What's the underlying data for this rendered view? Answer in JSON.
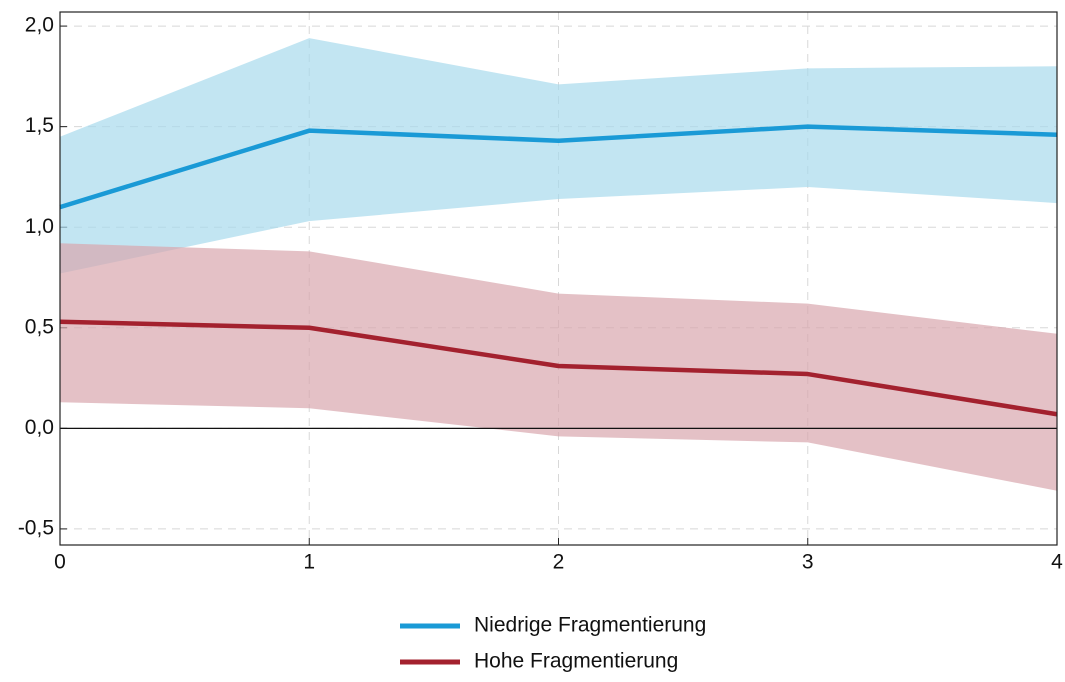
{
  "chart_data": {
    "type": "line",
    "x": [
      0,
      1,
      2,
      3,
      4
    ],
    "xlim": [
      0,
      4
    ],
    "xticks": [
      0,
      1,
      2,
      3,
      4
    ],
    "ylim": [
      -0.58,
      2.07
    ],
    "yticks": [
      {
        "value": -0.5,
        "label": "-0,5"
      },
      {
        "value": 0,
        "label": "0,0"
      },
      {
        "value": 0.5,
        "label": "0,5"
      },
      {
        "value": 1,
        "label": "1,0"
      },
      {
        "value": 1.5,
        "label": "1,5"
      },
      {
        "value": 2,
        "label": "2,0"
      }
    ],
    "grid": true,
    "series": [
      {
        "name": "Niedrige Fragmentierung",
        "color": "#1a9ad6",
        "band_color": "#a8daec",
        "values": [
          1.1,
          1.48,
          1.43,
          1.5,
          1.46
        ],
        "lower": [
          0.77,
          1.03,
          1.14,
          1.2,
          1.12
        ],
        "upper": [
          1.45,
          1.94,
          1.71,
          1.79,
          1.8
        ]
      },
      {
        "name": "Hohe Fragmentierung",
        "color": "#a3212e",
        "band_color": "#d9a7ae",
        "values": [
          0.53,
          0.5,
          0.31,
          0.27,
          0.07
        ],
        "lower": [
          0.13,
          0.1,
          -0.04,
          -0.07,
          -0.31
        ],
        "upper": [
          0.92,
          0.88,
          0.67,
          0.62,
          0.47
        ]
      }
    ]
  }
}
